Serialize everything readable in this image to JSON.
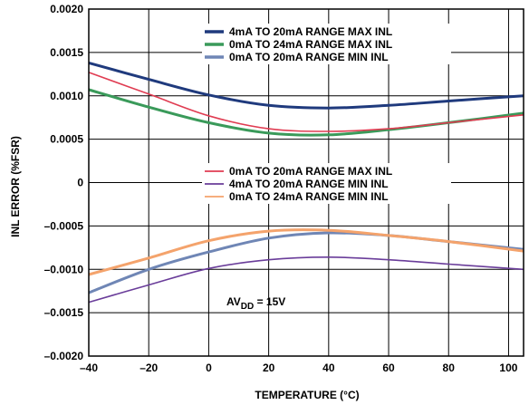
{
  "chart_data": {
    "type": "line",
    "xlabel": "TEMPERATURE (°C)",
    "ylabel": "INL ERROR (%FSR)",
    "xlim": [
      -40,
      105
    ],
    "ylim": [
      -0.002,
      0.002
    ],
    "x_ticks": [
      -40,
      -20,
      0,
      20,
      40,
      60,
      80,
      100
    ],
    "x_tick_labels": [
      "–40",
      "–20",
      "0",
      "20",
      "40",
      "60",
      "80",
      "100"
    ],
    "y_ticks": [
      0.002,
      0.0015,
      0.001,
      0.0005,
      0,
      -0.0005,
      -0.001,
      -0.0015,
      -0.002
    ],
    "y_tick_labels": [
      "0.0020",
      "0.0015",
      "0.0010",
      "0.0005",
      "0",
      "–0.0005",
      "–0.0010",
      "–0.0015",
      "–0.0020"
    ],
    "grid": true,
    "annotation": {
      "main": "AV",
      "sub": "DD",
      "rest": " = 15V"
    },
    "series": [
      {
        "name": "4mA TO 20mA RANGE MAX INL",
        "color": "#1f3a7d",
        "legend_group": 1,
        "x": [
          -40,
          -20,
          0,
          20,
          40,
          60,
          80,
          105
        ],
        "y": [
          0.00138,
          0.00119,
          0.00101,
          0.00089,
          0.00086,
          0.00089,
          0.00094,
          0.001
        ]
      },
      {
        "name": "0mA TO 24mA RANGE MAX INL",
        "color": "#3a9a5a",
        "legend_group": 1,
        "x": [
          -40,
          -20,
          0,
          20,
          40,
          60,
          80,
          105
        ],
        "y": [
          0.00107,
          0.00087,
          0.00069,
          0.00057,
          0.00055,
          0.00061,
          0.00069,
          0.0008
        ]
      },
      {
        "name": "0mA TO 20mA RANGE MIN INL",
        "color": "#6f86b5",
        "legend_group": 1,
        "x": [
          -40,
          -20,
          0,
          20,
          40,
          60,
          80,
          105
        ],
        "y": [
          -0.00127,
          -0.001,
          -0.0008,
          -0.00064,
          -0.00058,
          -0.00061,
          -0.00068,
          -0.00077
        ]
      },
      {
        "name": "0mA TO 20mA RANGE MAX INL",
        "color": "#e03c52",
        "legend_group": 2,
        "x": [
          -40,
          -20,
          0,
          20,
          40,
          60,
          80,
          105
        ],
        "y": [
          0.00127,
          0.00102,
          0.00077,
          0.00062,
          0.00059,
          0.00062,
          0.00069,
          0.00078
        ]
      },
      {
        "name": "4mA TO 20mA RANGE MIN INL",
        "color": "#6a3d9a",
        "legend_group": 2,
        "x": [
          -40,
          -20,
          0,
          20,
          40,
          60,
          80,
          105
        ],
        "y": [
          -0.00138,
          -0.00118,
          -0.00099,
          -0.00089,
          -0.00086,
          -0.00089,
          -0.00094,
          -0.001
        ]
      },
      {
        "name": "0mA TO 24mA RANGE MIN INL",
        "color": "#f4a36c",
        "legend_group": 2,
        "x": [
          -40,
          -20,
          0,
          20,
          40,
          60,
          80,
          105
        ],
        "y": [
          -0.00106,
          -0.00087,
          -0.00067,
          -0.00056,
          -0.00055,
          -0.00061,
          -0.00068,
          -0.00079
        ]
      }
    ]
  }
}
